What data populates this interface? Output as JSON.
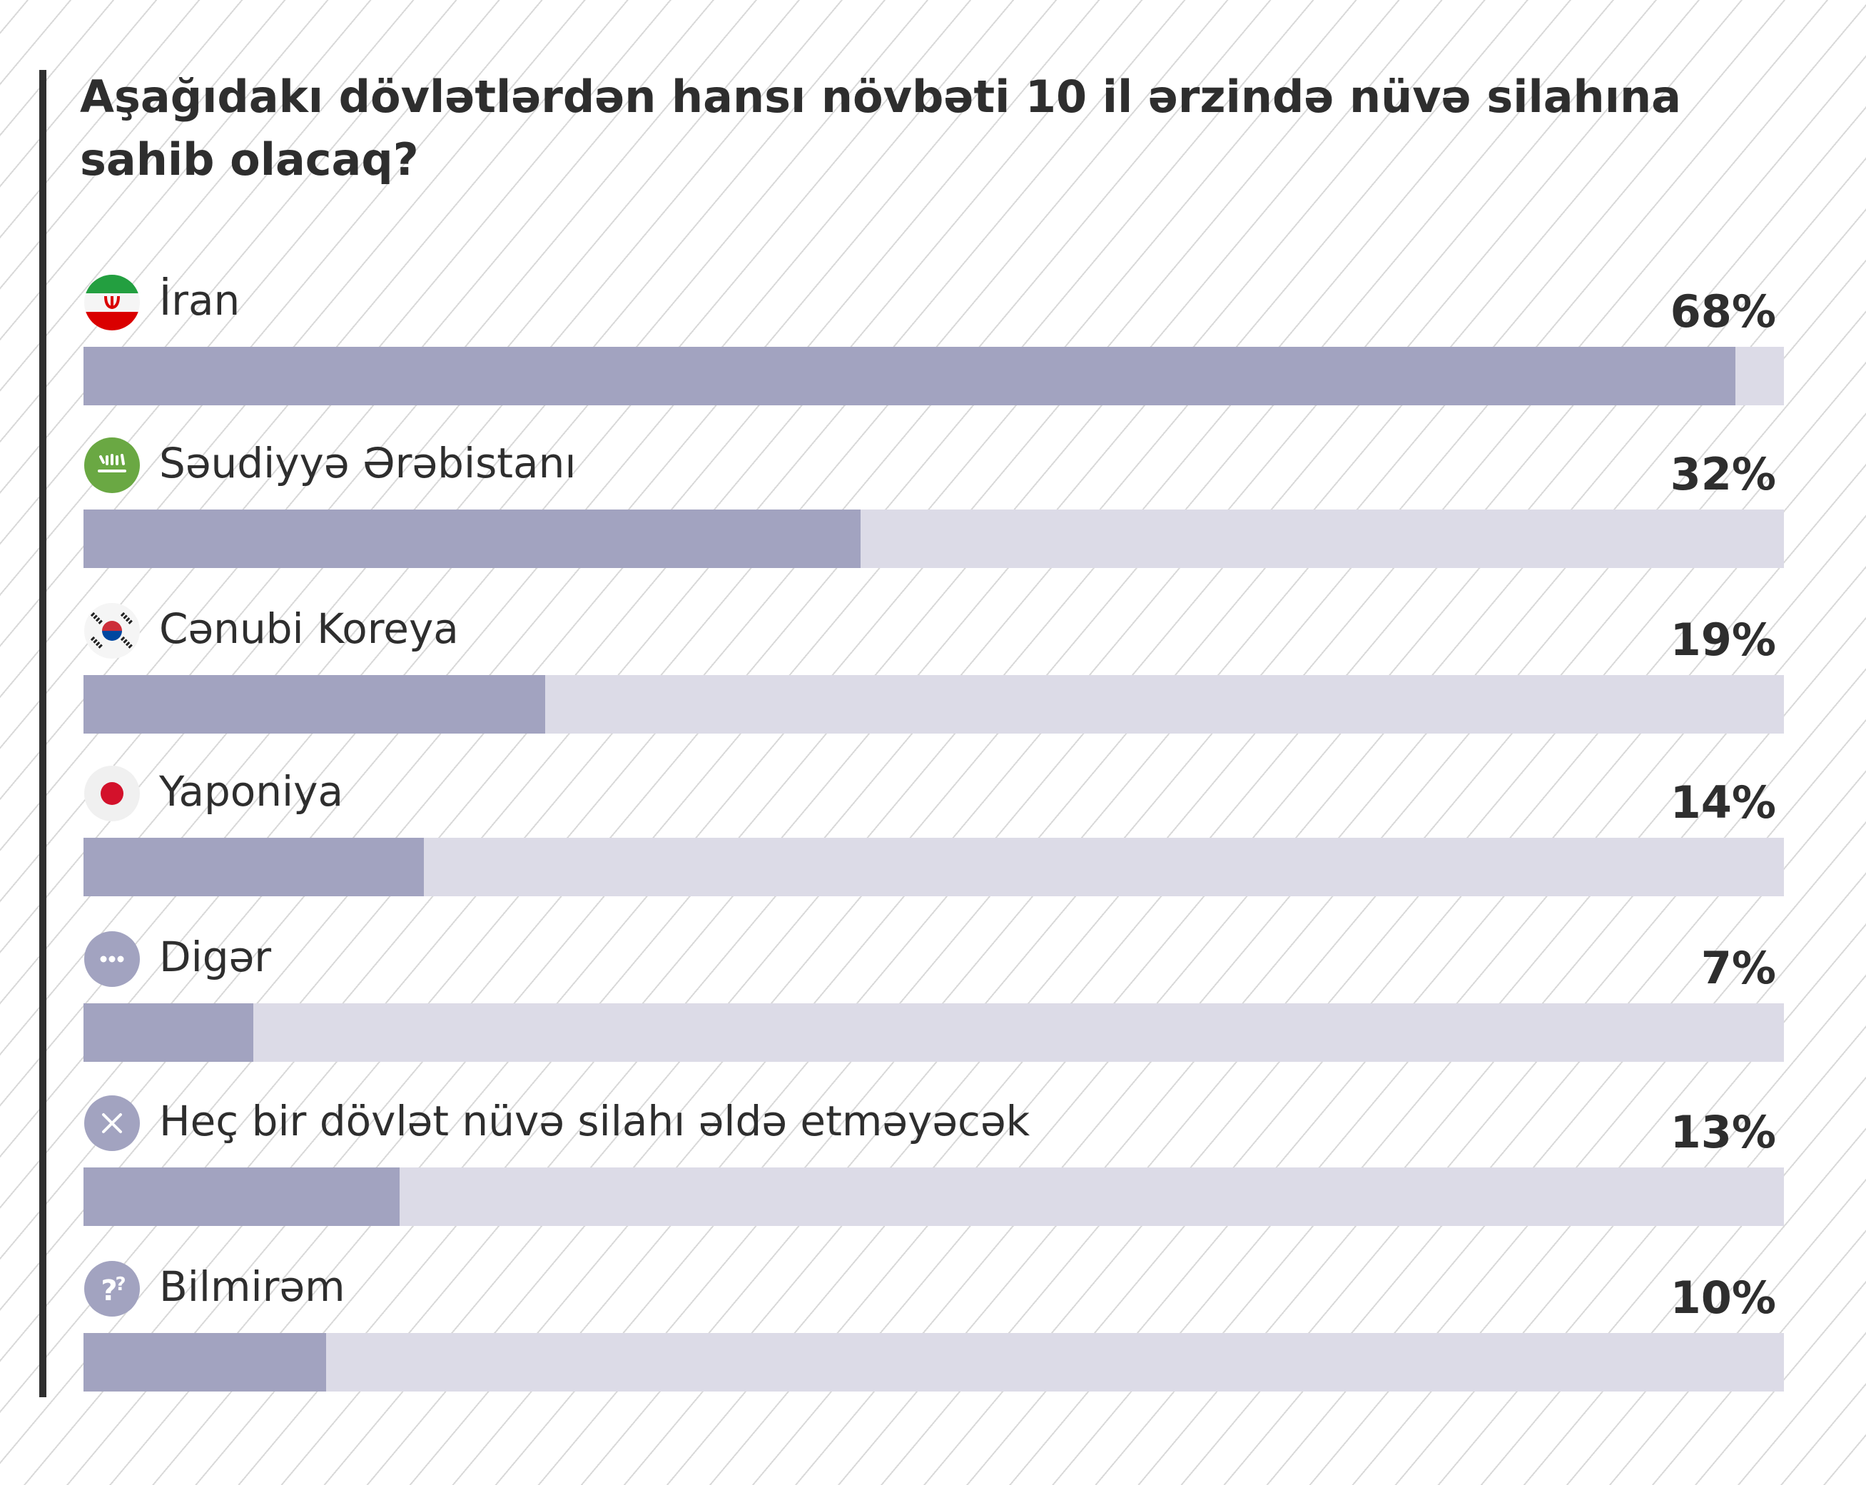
{
  "chart_data": {
    "type": "bar",
    "orientation": "horizontal",
    "title": "Aşağıdakı dövlətlərdən hansı növbəti 10 il ərzində nüvə silahına sahib olacaq?",
    "categories": [
      "İran",
      "Səudiyyə Ərəbistanı",
      "Cənubi Koreya",
      "Yaponiya",
      "Digər",
      "Heç bir dövlət nüvə silahı əldə etməyəcək",
      "Bilmirəm"
    ],
    "values": [
      68,
      32,
      19,
      14,
      7,
      13,
      10
    ],
    "value_labels": [
      "68%",
      "32%",
      "19%",
      "14%",
      "7%",
      "13%",
      "10%"
    ],
    "icons": [
      "iran-flag-icon",
      "saudi-flag-icon",
      "south-korea-flag-icon",
      "japan-flag-icon",
      "more-dots-icon",
      "close-x-icon",
      "question-marks-icon"
    ],
    "xlim": [
      0,
      70
    ],
    "grid": false,
    "legend": "none",
    "colors": {
      "bar_fill": "#a2a3c0",
      "bar_track": "#dcdbe7",
      "text": "#2e2e2e",
      "accent": "#2f2f2f"
    }
  }
}
